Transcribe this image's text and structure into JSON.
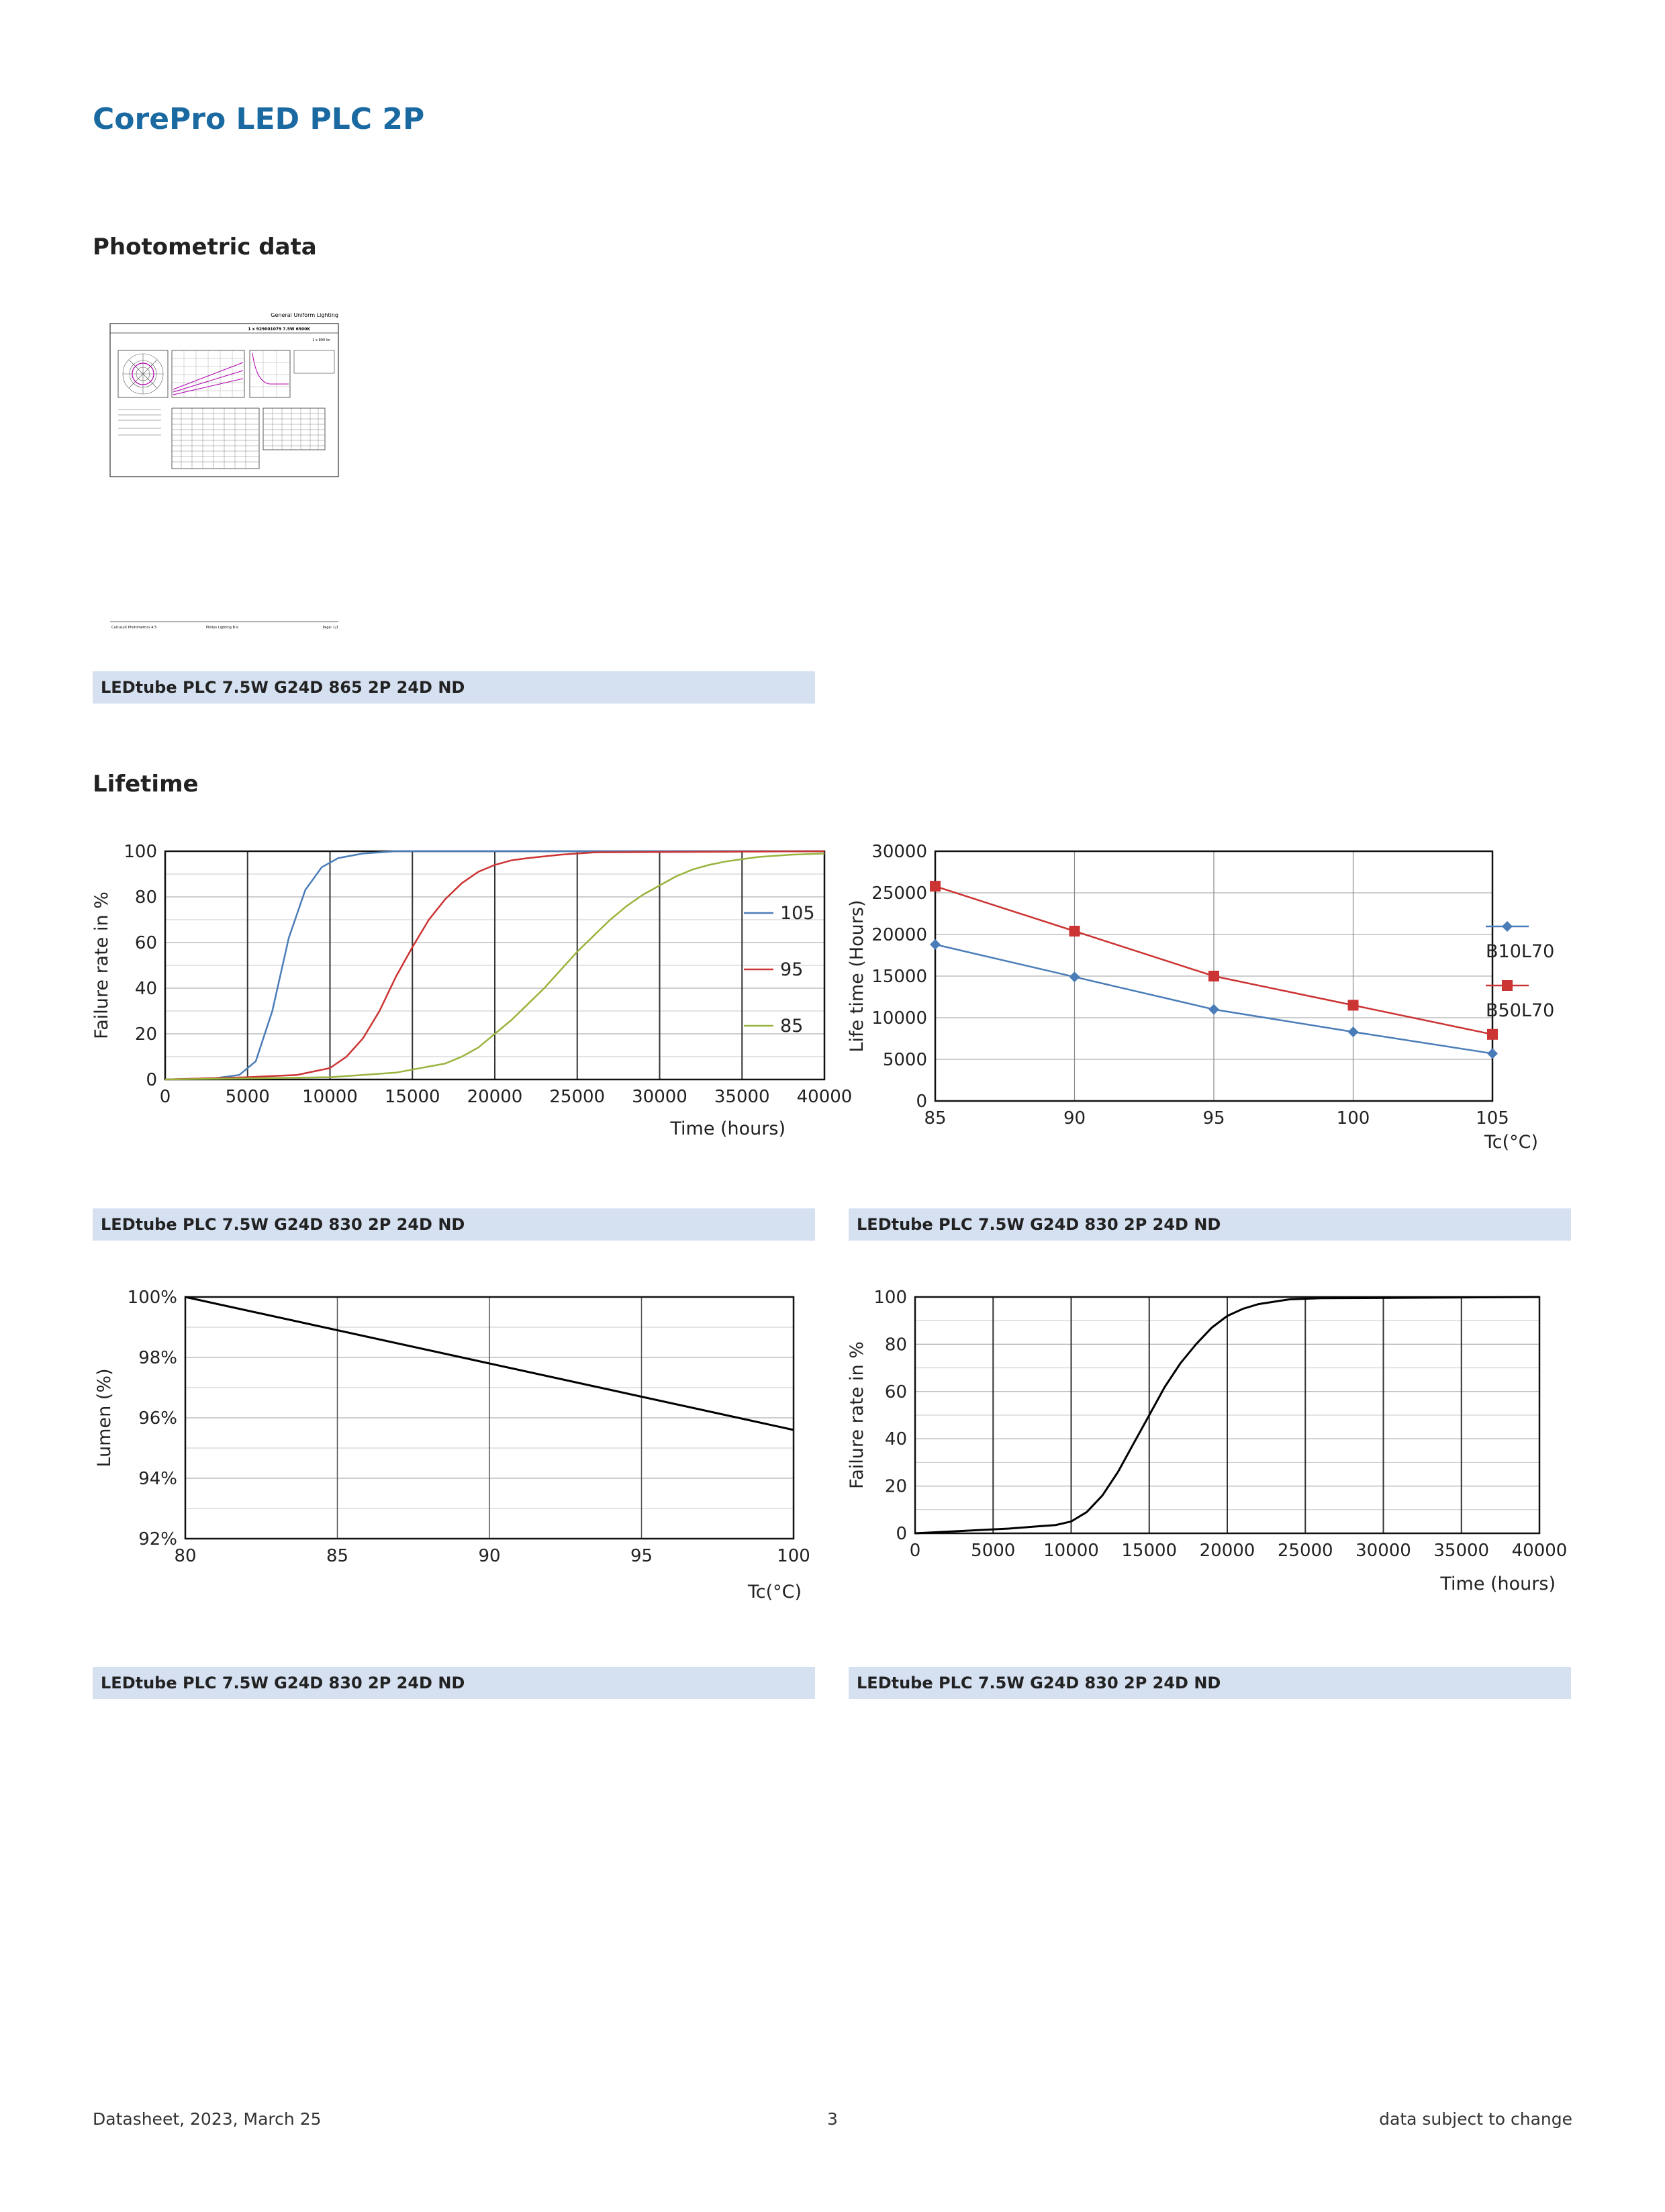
{
  "page": {
    "title": "CorePro LED PLC 2P",
    "sections": {
      "photometric": "Photometric data",
      "lifetime": "Lifetime"
    },
    "footer": {
      "left": "Datasheet, 2023, March 25",
      "center": "3",
      "right": "data subject to change"
    }
  },
  "photometric_thumbnail": {
    "header": "General Uniform Lighting",
    "subheader": "1 x 929001079 7.5W 6500K",
    "lumen": "1 x 890 lm",
    "footer_left": "CalcuLuX Photometrics 4.5",
    "footer_mid": "Philips Lighting B.V.",
    "footer_right": "Page: 1/1",
    "colors": {
      "curve": "#b000b0",
      "frame": "#333333"
    }
  },
  "captions": {
    "photometric": "LEDtube PLC 7.5W G24D 865 2P 24D ND",
    "chart1": "LEDtube PLC 7.5W G24D 830 2P 24D ND",
    "chart2": "LEDtube PLC 7.5W G24D 830 2P 24D ND",
    "chart3": "LEDtube PLC 7.5W G24D 830 2P 24D ND",
    "chart4": "LEDtube PLC 7.5W G24D 830 2P 24D ND"
  },
  "chart_data": [
    {
      "type": "line",
      "xlabel": "Time (hours)",
      "ylabel": "Failure rate in %",
      "xlim": [
        0,
        40000
      ],
      "ylim": [
        0,
        100
      ],
      "xticks": [
        "0",
        "5000",
        "10000",
        "15000",
        "20000",
        "25000",
        "30000",
        "35000",
        "40000"
      ],
      "yticks": [
        "0",
        "20",
        "40",
        "60",
        "80",
        "100"
      ],
      "legend_position": "right",
      "series": [
        {
          "name": "105",
          "color": "#4a7db8",
          "x": [
            0,
            3000,
            4500,
            5500,
            6500,
            7500,
            8500,
            9500,
            10500,
            12000,
            14000,
            40000
          ],
          "y": [
            0,
            0.5,
            2,
            8,
            30,
            62,
            83,
            93,
            97,
            99,
            100,
            100
          ]
        },
        {
          "name": "95",
          "color": "#cc3333",
          "x": [
            0,
            5000,
            8000,
            10000,
            11000,
            12000,
            13000,
            14000,
            15000,
            16000,
            17000,
            18000,
            19000,
            20000,
            21000,
            22000,
            24000,
            26000,
            40000
          ],
          "y": [
            0,
            1,
            2,
            5,
            10,
            18,
            30,
            45,
            58,
            70,
            79,
            86,
            91,
            94,
            96,
            97,
            98.5,
            99.5,
            100
          ]
        },
        {
          "name": "85",
          "color": "#99b33d",
          "x": [
            0,
            10000,
            14000,
            17000,
            18000,
            19000,
            20000,
            21000,
            22000,
            23000,
            24000,
            25000,
            26000,
            27000,
            28000,
            29000,
            30000,
            31000,
            32000,
            33000,
            34000,
            35000,
            36000,
            38000,
            40000
          ],
          "y": [
            0,
            1,
            3,
            7,
            10,
            14,
            20,
            26,
            33,
            40,
            48,
            56,
            63,
            70,
            76,
            81,
            85,
            89,
            92,
            94,
            95.5,
            96.5,
            97.5,
            98.5,
            99
          ]
        }
      ]
    },
    {
      "type": "line",
      "xlabel": "Tc(°C)",
      "ylabel": "Life time (Hours)",
      "xlim": [
        85,
        105
      ],
      "ylim": [
        0,
        30000
      ],
      "xticks": [
        "85",
        "90",
        "95",
        "100",
        "105"
      ],
      "yticks": [
        "0",
        "5000",
        "10000",
        "15000",
        "20000",
        "25000",
        "30000"
      ],
      "legend_position": "right",
      "series": [
        {
          "name": "B10L70",
          "color": "#4a7db8",
          "marker": "diamond",
          "x": [
            85,
            90,
            95,
            100,
            105
          ],
          "y": [
            18800,
            14900,
            11000,
            8300,
            5700
          ]
        },
        {
          "name": "B50L70",
          "color": "#cc3333",
          "marker": "square",
          "x": [
            85,
            90,
            95,
            100,
            105
          ],
          "y": [
            25800,
            20400,
            15000,
            11500,
            8000
          ]
        }
      ]
    },
    {
      "type": "line",
      "xlabel": "Tc(°C)",
      "ylabel": "Lumen (%)",
      "xlim": [
        80,
        100
      ],
      "ylim": [
        92,
        100
      ],
      "xticks": [
        "80",
        "85",
        "90",
        "95",
        "100"
      ],
      "yticks": [
        "92%",
        "94%",
        "96%",
        "98%",
        "100%"
      ],
      "series": [
        {
          "color": "#000000",
          "x": [
            80,
            85,
            90,
            95,
            100
          ],
          "y": [
            100,
            98.9,
            97.8,
            96.7,
            95.6
          ]
        }
      ]
    },
    {
      "type": "line",
      "xlabel": "Time (hours)",
      "ylabel": "Failure rate in %",
      "xlim": [
        0,
        40000
      ],
      "ylim": [
        0,
        100
      ],
      "xticks": [
        "0",
        "5000",
        "10000",
        "15000",
        "20000",
        "25000",
        "30000",
        "35000",
        "40000"
      ],
      "yticks": [
        "0",
        "20",
        "40",
        "60",
        "80",
        "100"
      ],
      "series": [
        {
          "color": "#000000",
          "x": [
            0,
            3000,
            6000,
            8000,
            9000,
            10000,
            11000,
            12000,
            13000,
            14000,
            15000,
            16000,
            17000,
            18000,
            19000,
            20000,
            21000,
            22000,
            23000,
            24000,
            26000,
            40000
          ],
          "y": [
            0,
            1,
            2,
            3,
            3.5,
            5,
            9,
            16,
            26,
            38,
            50,
            62,
            72,
            80,
            87,
            92,
            95,
            97,
            98,
            99,
            99.5,
            100
          ]
        }
      ]
    }
  ]
}
